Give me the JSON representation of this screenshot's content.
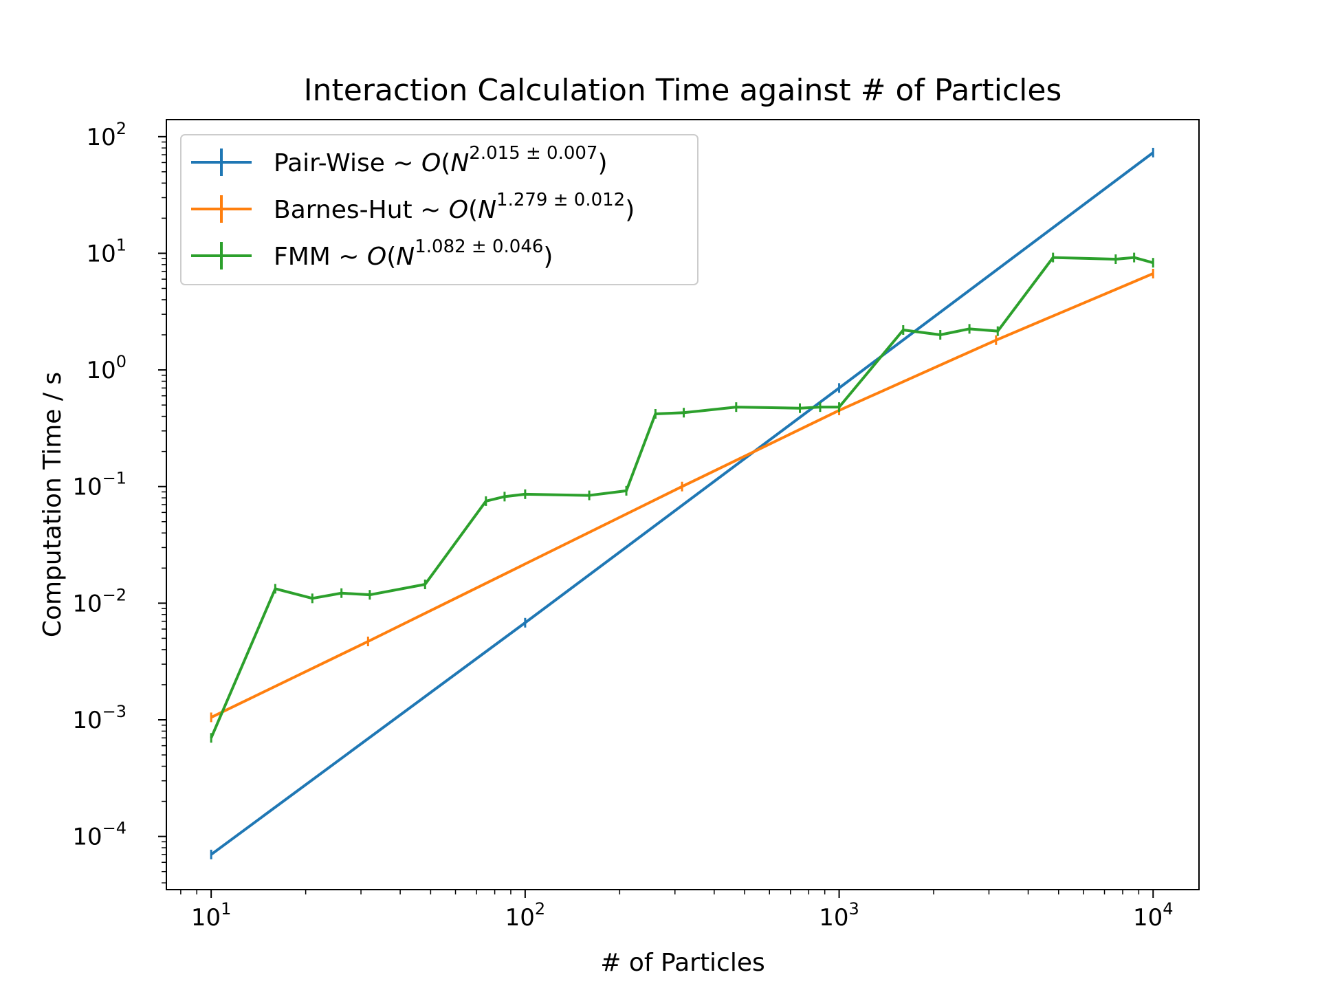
{
  "chart_data": {
    "type": "line",
    "title": "Interaction Calculation Time against # of Particles",
    "xlabel": "# of Particles",
    "ylabel": "Computation Time / s",
    "xscale": "log",
    "yscale": "log",
    "xlim": [
      7.2,
      14000
    ],
    "ylim": [
      3.5e-05,
      140
    ],
    "grid": false,
    "legend_position": "top-left",
    "x_ticks": [
      {
        "value": 10,
        "base": "10",
        "exp": "1"
      },
      {
        "value": 100,
        "base": "10",
        "exp": "2"
      },
      {
        "value": 1000,
        "base": "10",
        "exp": "3"
      },
      {
        "value": 10000,
        "base": "10",
        "exp": "4"
      }
    ],
    "y_ticks": [
      {
        "value": 0.0001,
        "base": "10",
        "exp": "−4"
      },
      {
        "value": 0.001,
        "base": "10",
        "exp": "−3"
      },
      {
        "value": 0.01,
        "base": "10",
        "exp": "−2"
      },
      {
        "value": 0.1,
        "base": "10",
        "exp": "−1"
      },
      {
        "value": 1,
        "base": "10",
        "exp": "0"
      },
      {
        "value": 10,
        "base": "10",
        "exp": "1"
      },
      {
        "value": 100,
        "base": "10",
        "exp": "2"
      }
    ],
    "series": [
      {
        "name": "Pair-Wise",
        "legend": {
          "prefix": "Pair-Wise ~ ",
          "o": "O",
          "paren": "(",
          "n": "N",
          "exponent": "2.015 ± 0.007",
          "close": ")"
        },
        "color": "#1f77b4",
        "x": [
          10,
          100,
          1000,
          10000
        ],
        "y": [
          7e-05,
          0.0068,
          0.7,
          73
        ]
      },
      {
        "name": "Barnes-Hut",
        "legend": {
          "prefix": "Barnes-Hut ~ ",
          "o": "O",
          "paren": "(",
          "n": "N",
          "exponent": "1.279 ± 0.012",
          "close": ")"
        },
        "color": "#ff7f0e",
        "x": [
          10,
          31.6,
          316,
          1000,
          3160,
          10000
        ],
        "y": [
          0.00105,
          0.0047,
          0.1,
          0.45,
          1.8,
          6.7
        ]
      },
      {
        "name": "FMM",
        "legend": {
          "prefix": "FMM ~ ",
          "o": "O",
          "paren": "(",
          "n": "N",
          "exponent": "1.082 ± 0.046",
          "close": ")"
        },
        "color": "#2ca02c",
        "x": [
          10,
          16,
          21,
          26,
          32,
          48,
          75,
          86,
          100,
          160,
          210,
          260,
          320,
          470,
          750,
          870,
          1000,
          1600,
          2100,
          2600,
          3200,
          4800,
          7600,
          8700,
          10000
        ],
        "y": [
          0.0007,
          0.0133,
          0.011,
          0.0122,
          0.0118,
          0.0145,
          0.075,
          0.082,
          0.086,
          0.084,
          0.092,
          0.42,
          0.43,
          0.48,
          0.47,
          0.48,
          0.48,
          2.2,
          2.0,
          2.25,
          2.15,
          9.2,
          8.9,
          9.2,
          8.3
        ]
      }
    ]
  }
}
